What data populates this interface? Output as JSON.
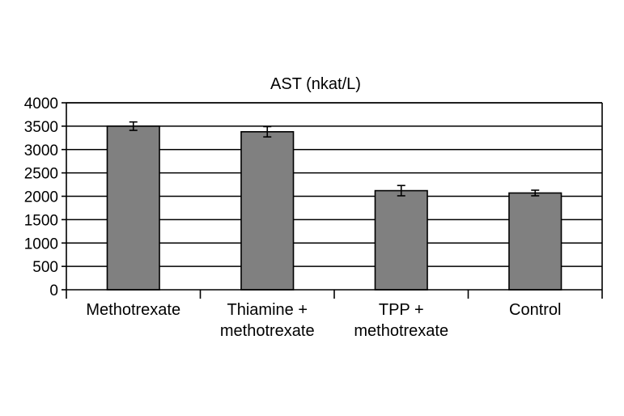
{
  "chart_data": {
    "type": "bar",
    "title": "AST (nkat/L)",
    "xlabel": "",
    "ylabel": "",
    "categories": [
      [
        "Methotrexate"
      ],
      [
        "Thiamine +",
        "methotrexate"
      ],
      [
        "TPP +",
        "methotrexate"
      ],
      [
        "Control"
      ]
    ],
    "values": [
      3500,
      3380,
      2120,
      2070
    ],
    "errors": [
      90,
      110,
      110,
      60
    ],
    "ylim": [
      0,
      4000
    ],
    "yticks": [
      0,
      500,
      1000,
      1500,
      2000,
      2500,
      3000,
      3500,
      4000
    ],
    "grid": true,
    "legend": "none",
    "colors": {
      "bar_fill": "#808080",
      "bar_stroke": "#000000",
      "grid": "#000000",
      "axis": "#000000"
    }
  }
}
